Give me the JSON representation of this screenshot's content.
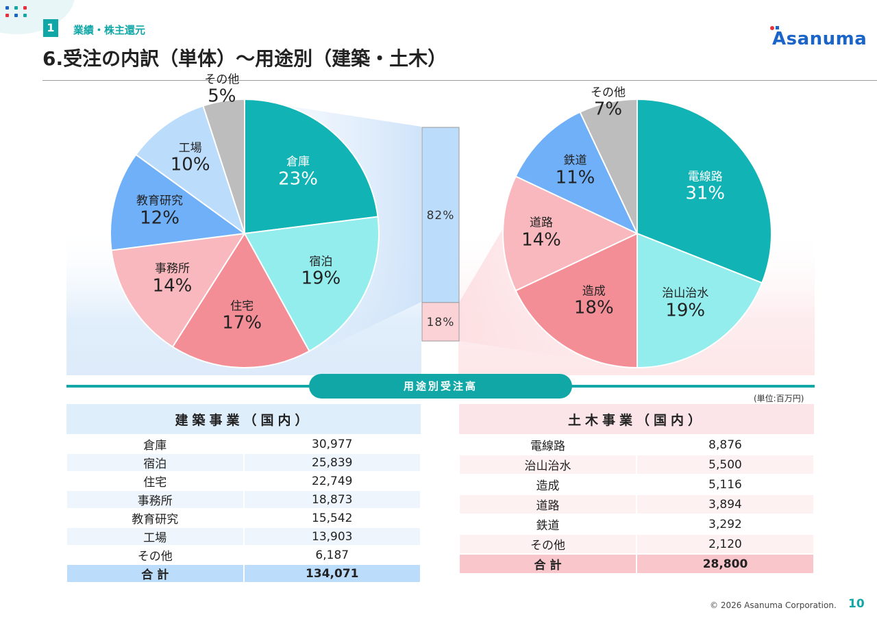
{
  "header": {
    "section_number": "1",
    "section_label": "業績・株主還元",
    "title": "6.受注の内訳（単体）～用途別（建築・土木）",
    "logo_text": "Asanuma"
  },
  "colors": {
    "teal": "#12b3b5",
    "aqua": "#93eded",
    "rose": "#f38e97",
    "light_rose": "#f9b8bd",
    "blue": "#6fb0f8",
    "light_blue": "#bcdcfb",
    "gray": "#bdbdbd"
  },
  "chart_data": [
    {
      "type": "pie",
      "name": "建築",
      "slices": [
        {
          "label": "倉庫",
          "value": 23,
          "display": "23%",
          "color": "#12b3b5"
        },
        {
          "label": "宿泊",
          "value": 19,
          "display": "19%",
          "color": "#93eded"
        },
        {
          "label": "住宅",
          "value": 17,
          "display": "17%",
          "color": "#f38e97"
        },
        {
          "label": "事務所",
          "value": 14,
          "display": "14%",
          "color": "#f9b8bd"
        },
        {
          "label": "教育研究",
          "value": 12,
          "display": "12%",
          "color": "#6fb0f8"
        },
        {
          "label": "工場",
          "value": 10,
          "display": "10%",
          "color": "#bcdcfb"
        },
        {
          "label": "その他",
          "value": 5,
          "display": "5%",
          "color": "#bdbdbd"
        }
      ]
    },
    {
      "type": "bar",
      "name": "split",
      "segments": [
        {
          "label": "82%",
          "value": 82,
          "color": "#bcdcfb"
        },
        {
          "label": "18%",
          "value": 18,
          "color": "#fbd3d6"
        }
      ]
    },
    {
      "type": "pie",
      "name": "土木",
      "slices": [
        {
          "label": "電線路",
          "value": 31,
          "display": "31%",
          "color": "#12b3b5"
        },
        {
          "label": "治山治水",
          "value": 19,
          "display": "19%",
          "color": "#93eded"
        },
        {
          "label": "造成",
          "value": 18,
          "display": "18%",
          "color": "#f38e97"
        },
        {
          "label": "道路",
          "value": 14,
          "display": "14%",
          "color": "#f9b8bd"
        },
        {
          "label": "鉄道",
          "value": 11,
          "display": "11%",
          "color": "#6fb0f8"
        },
        {
          "label": "その他",
          "value": 7,
          "display": "7%",
          "color": "#bdbdbd"
        }
      ]
    }
  ],
  "banner": "用途別受注高",
  "unit_note": "(単位:百万円)",
  "tables": {
    "building": {
      "header": "建築事業（国内）",
      "rows": [
        {
          "name": "倉庫",
          "value": "30,977"
        },
        {
          "name": "宿泊",
          "value": "25,839"
        },
        {
          "name": "住宅",
          "value": "22,749"
        },
        {
          "name": "事務所",
          "value": "18,873"
        },
        {
          "name": "教育研究",
          "value": "15,542"
        },
        {
          "name": "工場",
          "value": "13,903"
        },
        {
          "name": "その他",
          "value": "6,187"
        }
      ],
      "total_label": "合 計",
      "total_value": "134,071"
    },
    "civil": {
      "header": "土木事業（国内）",
      "rows": [
        {
          "name": "電線路",
          "value": "8,876"
        },
        {
          "name": "治山治水",
          "value": "5,500"
        },
        {
          "name": "造成",
          "value": "5,116"
        },
        {
          "name": "道路",
          "value": "3,894"
        },
        {
          "name": "鉄道",
          "value": "3,292"
        },
        {
          "name": "その他",
          "value": "2,120"
        }
      ],
      "total_label": "合 計",
      "total_value": "28,800"
    }
  },
  "footer": {
    "copyright": "© 2026 Asanuma Corporation.",
    "page_number": "10"
  }
}
